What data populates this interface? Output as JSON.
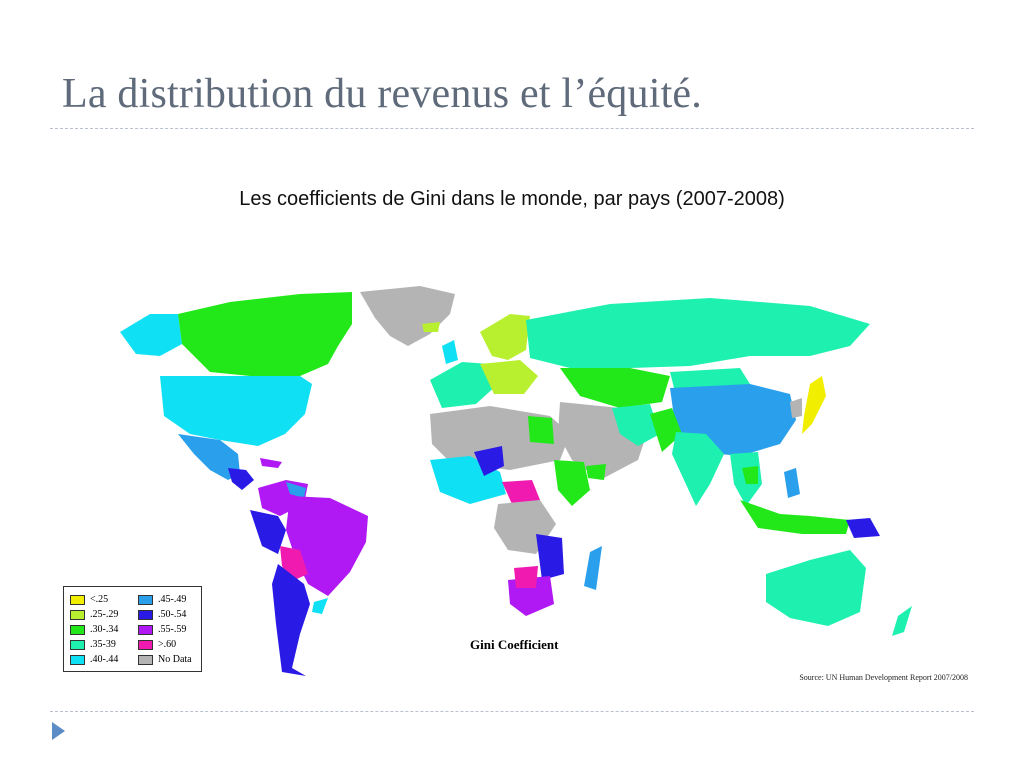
{
  "slide": {
    "title": "La distribution du revenus et l’équité.",
    "subtitle": "Les coefficients de Gini dans le monde, par pays (2007-2008)"
  },
  "map": {
    "title": "Gini Coefficient",
    "source": "Source: UN Human Development Report 2007/2008",
    "legend": [
      {
        "label": "<.25",
        "color": "#f2ee00"
      },
      {
        "label": ".25-.29",
        "color": "#b8f030"
      },
      {
        "label": ".30-.34",
        "color": "#22e81a"
      },
      {
        "label": ".35-39",
        "color": "#1ef0b0"
      },
      {
        "label": ".40-.44",
        "color": "#10e0f4"
      },
      {
        "label": ".45-.49",
        "color": "#2aa0ec"
      },
      {
        "label": ".50-.54",
        "color": "#2a1ae6"
      },
      {
        "label": ".55-.59",
        "color": "#b018f4"
      },
      {
        "label": ">.60",
        "color": "#f01ab0"
      },
      {
        "label": "No Data",
        "color": "#b4b4b4"
      }
    ]
  },
  "colors": {
    "title_text": "#5f6b7a",
    "rule": "#b9c2cc",
    "nav_arrow": "#5b8cc6"
  }
}
